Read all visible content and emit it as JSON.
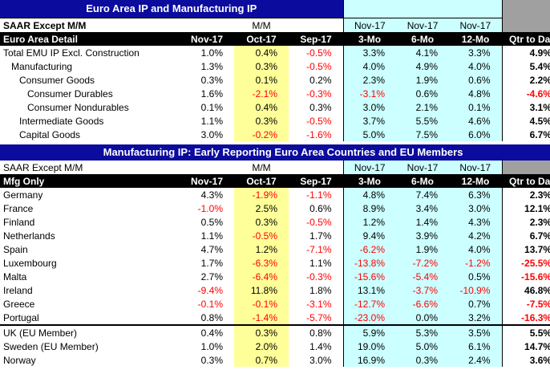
{
  "title1": "Euro Area IP and Manufacturing IP",
  "title2": "Manufacturing IP: Early Reporting Euro Area Countries and EU Members",
  "hdr1": {
    "saar": "SAAR Except M/M",
    "mm": "M/M",
    "nov3": "Nov-17",
    "nov6": "Nov-17",
    "nov12": "Nov-17"
  },
  "cols1": {
    "label": "Euro Area Detail",
    "c1": "Nov-17",
    "c2": "Oct-17",
    "c3": "Sep-17",
    "c4": "3-Mo",
    "c5": "6-Mo",
    "c6": "12-Mo",
    "c7": "Qtr to Date"
  },
  "rows1": [
    {
      "label": "Total EMU IP Excl. Construction",
      "indent": 0,
      "v": [
        "1.0%",
        "0.4%",
        "-0.5%",
        "3.3%",
        "4.1%",
        "3.3%",
        "4.9%"
      ]
    },
    {
      "label": "Manufacturing",
      "indent": 1,
      "v": [
        "1.3%",
        "0.3%",
        "-0.5%",
        "4.0%",
        "4.9%",
        "4.0%",
        "5.4%"
      ]
    },
    {
      "label": "Consumer Goods",
      "indent": 2,
      "v": [
        "0.3%",
        "0.1%",
        "0.2%",
        "2.3%",
        "1.9%",
        "0.6%",
        "2.2%"
      ]
    },
    {
      "label": "Consumer Durables",
      "indent": 3,
      "v": [
        "1.6%",
        "-2.1%",
        "-0.3%",
        "-3.1%",
        "0.6%",
        "4.8%",
        "-4.6%"
      ]
    },
    {
      "label": "Consumer Nondurables",
      "indent": 3,
      "v": [
        "0.1%",
        "0.4%",
        "0.3%",
        "3.0%",
        "2.1%",
        "0.1%",
        "3.1%"
      ]
    },
    {
      "label": "Intermediate Goods",
      "indent": 2,
      "v": [
        "1.1%",
        "0.3%",
        "-0.5%",
        "3.7%",
        "5.5%",
        "4.6%",
        "4.5%"
      ]
    },
    {
      "label": "Capital Goods",
      "indent": 2,
      "v": [
        "3.0%",
        "-0.2%",
        "-1.6%",
        "5.0%",
        "7.5%",
        "6.0%",
        "6.7%"
      ]
    }
  ],
  "hdr2": {
    "saar": "SAAR Except M/M",
    "mm": "M/M",
    "nov3": "Nov-17",
    "nov6": "Nov-17",
    "nov12": "Nov-17"
  },
  "cols2": {
    "label": "Mfg Only",
    "c1": "Nov-17",
    "c2": "Oct-17",
    "c3": "Sep-17",
    "c4": "3-Mo",
    "c5": "6-Mo",
    "c6": "12-Mo",
    "c7": "Qtr to Date"
  },
  "rows2": [
    {
      "label": "Germany",
      "v": [
        "4.3%",
        "-1.9%",
        "-1.1%",
        "4.8%",
        "7.4%",
        "6.3%",
        "2.3%"
      ]
    },
    {
      "label": "France",
      "v": [
        "-1.0%",
        "2.5%",
        "0.6%",
        "8.9%",
        "3.4%",
        "3.0%",
        "12.1%"
      ]
    },
    {
      "label": "Finland",
      "v": [
        "0.5%",
        "0.3%",
        "-0.5%",
        "1.2%",
        "1.4%",
        "4.3%",
        "2.3%"
      ]
    },
    {
      "label": "Netherlands",
      "v": [
        "1.1%",
        "-0.5%",
        "1.7%",
        "9.4%",
        "3.9%",
        "4.2%",
        "6.7%"
      ]
    },
    {
      "label": "Spain",
      "v": [
        "4.7%",
        "1.2%",
        "-7.1%",
        "-6.2%",
        "1.9%",
        "4.0%",
        "13.7%"
      ]
    },
    {
      "label": "Luxembourg",
      "v": [
        "1.7%",
        "-6.3%",
        "1.1%",
        "-13.8%",
        "-7.2%",
        "-1.2%",
        "-25.5%"
      ]
    },
    {
      "label": "Malta",
      "v": [
        "2.7%",
        "-6.4%",
        "-0.3%",
        "-15.6%",
        "-5.4%",
        "0.5%",
        "-15.6%"
      ]
    },
    {
      "label": "Ireland",
      "v": [
        "-9.4%",
        "11.8%",
        "1.8%",
        "13.1%",
        "-3.7%",
        "-10.9%",
        "46.8%"
      ]
    },
    {
      "label": "Greece",
      "v": [
        "-0.1%",
        "-0.1%",
        "-3.1%",
        "-12.7%",
        "-6.6%",
        "0.7%",
        "-7.5%"
      ]
    },
    {
      "label": "Portugal",
      "v": [
        "0.8%",
        "-1.4%",
        "-5.7%",
        "-23.0%",
        "0.0%",
        "3.2%",
        "-16.3%"
      ]
    }
  ],
  "rows3": [
    {
      "label": "UK (EU Member)",
      "v": [
        "0.4%",
        "0.3%",
        "0.8%",
        "5.9%",
        "5.3%",
        "3.5%",
        "5.5%"
      ]
    },
    {
      "label": "Sweden (EU Member)",
      "v": [
        "1.0%",
        "2.0%",
        "1.4%",
        "19.0%",
        "5.0%",
        "6.1%",
        "14.7%"
      ]
    },
    {
      "label": "Norway",
      "v": [
        "0.3%",
        "0.7%",
        "3.0%",
        "16.9%",
        "0.3%",
        "2.4%",
        "3.6%"
      ]
    }
  ],
  "colors": {
    "band": "#0b0b9e",
    "cyan": "#ccffff",
    "yellow": "#ffff99",
    "negative": "#ff0000",
    "gray": "#a0a0a0"
  }
}
